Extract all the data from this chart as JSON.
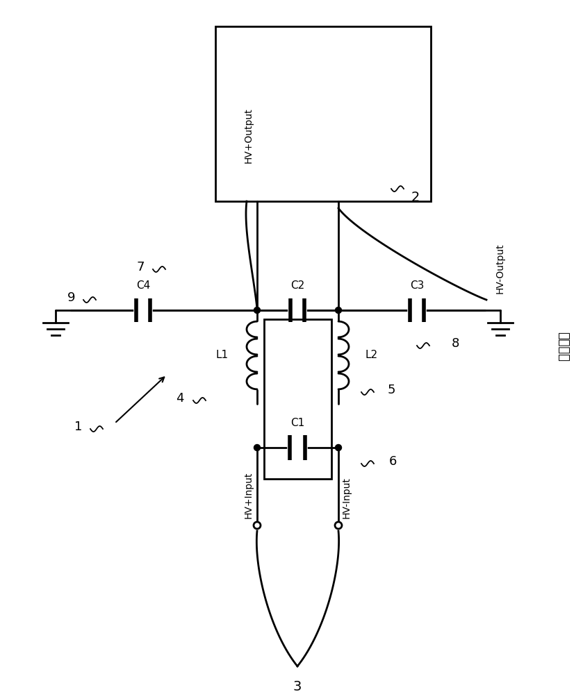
{
  "bg_color": "#ffffff",
  "lc": "#000000",
  "lw": 2.0,
  "fig_w": 8.39,
  "fig_h": 10.0,
  "dpi": 100,
  "chinese_text": "现有技术",
  "labels": {
    "1": "1",
    "2": "2",
    "3": "3",
    "4": "4",
    "5": "5",
    "6": "6",
    "7": "7",
    "8": "8",
    "9": "9",
    "C1": "C1",
    "C2": "C2",
    "C3": "C3",
    "C4": "C4",
    "L1": "L1",
    "L2": "L2",
    "HVpOut": "HV+Output",
    "HVmOut": "HV-Output",
    "HVpIn": "HV+Input",
    "HVmIn": "HV-Input"
  }
}
